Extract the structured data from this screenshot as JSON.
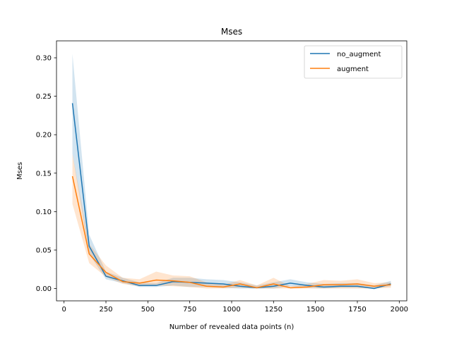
{
  "chart_data": {
    "type": "line",
    "title": "Mses",
    "xlabel": "Number of revealed data points (n)",
    "ylabel": "Mses",
    "xlim": [
      -45,
      2045
    ],
    "ylim": [
      -0.016,
      0.322
    ],
    "xticks": [
      0,
      250,
      500,
      750,
      1000,
      1250,
      1500,
      1750,
      2000
    ],
    "yticks": [
      0.0,
      0.05,
      0.1,
      0.15,
      0.2,
      0.25,
      0.3
    ],
    "xtick_labels": [
      "0",
      "250",
      "500",
      "750",
      "1000",
      "1250",
      "1500",
      "1750",
      "2000"
    ],
    "ytick_labels": [
      "0.00",
      "0.05",
      "0.10",
      "0.15",
      "0.20",
      "0.25",
      "0.30"
    ],
    "grid": false,
    "legend_position": "top-right",
    "x": [
      50,
      150,
      250,
      350,
      450,
      550,
      650,
      750,
      850,
      950,
      1050,
      1150,
      1250,
      1350,
      1450,
      1550,
      1650,
      1750,
      1850,
      1950
    ],
    "series": [
      {
        "name": "no_augment",
        "color": "#1f77b4",
        "values": [
          0.241,
          0.055,
          0.016,
          0.01,
          0.004,
          0.004,
          0.009,
          0.008,
          0.007,
          0.006,
          0.003,
          0.001,
          0.003,
          0.007,
          0.004,
          0.002,
          0.003,
          0.003,
          0.0,
          0.006
        ],
        "lower": [
          0.175,
          0.045,
          0.012,
          0.007,
          0.002,
          0.002,
          0.004,
          0.002,
          0.002,
          0.001,
          0.0,
          0.0,
          0.0,
          0.003,
          0.001,
          0.0,
          0.001,
          0.001,
          0.0,
          0.003
        ],
        "upper": [
          0.305,
          0.07,
          0.022,
          0.014,
          0.008,
          0.007,
          0.014,
          0.014,
          0.012,
          0.011,
          0.008,
          0.004,
          0.008,
          0.012,
          0.008,
          0.006,
          0.007,
          0.007,
          0.004,
          0.01
        ]
      },
      {
        "name": "augment",
        "color": "#ff7f0e",
        "values": [
          0.146,
          0.045,
          0.021,
          0.009,
          0.007,
          0.011,
          0.01,
          0.008,
          0.003,
          0.002,
          0.006,
          0.001,
          0.006,
          0.001,
          0.002,
          0.005,
          0.005,
          0.006,
          0.003,
          0.005
        ],
        "lower": [
          0.11,
          0.033,
          0.015,
          0.006,
          0.003,
          0.004,
          0.003,
          0.002,
          0.0,
          0.0,
          0.001,
          0.0,
          0.0,
          0.0,
          0.0,
          0.0,
          0.0,
          0.0,
          0.0,
          0.001
        ],
        "upper": [
          0.175,
          0.058,
          0.03,
          0.014,
          0.012,
          0.022,
          0.017,
          0.016,
          0.008,
          0.005,
          0.011,
          0.004,
          0.014,
          0.003,
          0.006,
          0.011,
          0.01,
          0.012,
          0.007,
          0.008
        ]
      }
    ]
  }
}
